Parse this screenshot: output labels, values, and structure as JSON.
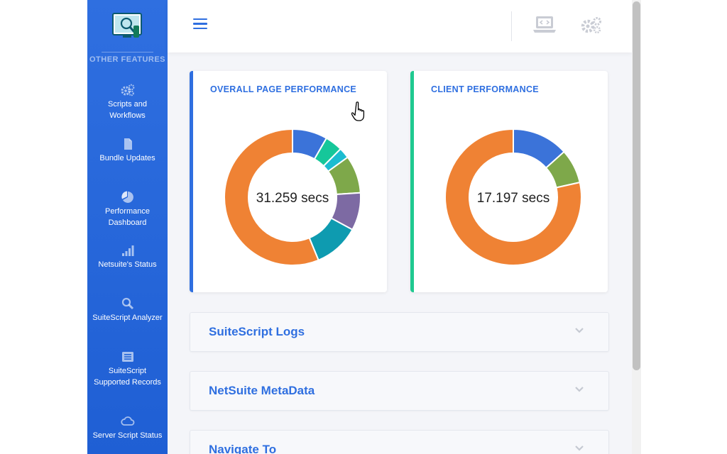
{
  "sidebar": {
    "section_title": "OTHER FEATURES",
    "items": [
      {
        "icon": "gears-icon",
        "label": "Scripts and Workflows"
      },
      {
        "icon": "document-icon",
        "label": "Bundle Updates"
      },
      {
        "icon": "pie-chart-icon",
        "label": "Performance Dashboard"
      },
      {
        "icon": "signal-bars-icon",
        "label": "Netsuite's Status"
      },
      {
        "icon": "magnifier-icon",
        "label": "SuiteScript Analyzer"
      },
      {
        "icon": "list-icon",
        "label": "SuiteScript Supported Records"
      },
      {
        "icon": "cloud-icon",
        "label": "Server Script Status"
      }
    ]
  },
  "topbar": {
    "menu_icon": "hamburger-icon",
    "icons": [
      "laptop-code-icon",
      "gears-icon"
    ]
  },
  "cards": [
    {
      "title": "OVERALL PAGE PERFORMANCE",
      "center_value": "31.259 secs",
      "accent": "#2f6fe0",
      "chart_data": {
        "type": "pie",
        "values": [
          2.6,
          1.3,
          0.8,
          2.8,
          2.8,
          3.4,
          17.6
        ],
        "colors": [
          "#3b73d9",
          "#16c79a",
          "#1cbcd0",
          "#7ea84a",
          "#7d6aa3",
          "#0e9bb0",
          "#ef8234"
        ]
      }
    },
    {
      "title": "CLIENT PERFORMANCE",
      "center_value": "17.197 secs",
      "accent": "#1fc990",
      "chart_data": {
        "type": "pie",
        "values": [
          2.3,
          1.4,
          13.5
        ],
        "colors": [
          "#3b73d9",
          "#7ea84a",
          "#ef8234"
        ]
      }
    }
  ],
  "accordions": [
    {
      "title": "SuiteScript Logs"
    },
    {
      "title": "NetSuite MetaData"
    },
    {
      "title": "Navigate To"
    }
  ]
}
